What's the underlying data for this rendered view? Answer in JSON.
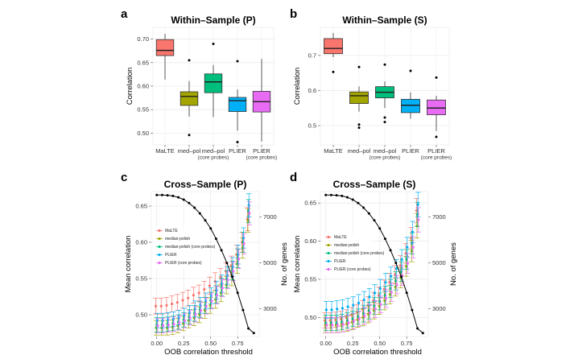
{
  "chart_data": [
    {
      "id": "a",
      "letter": "a",
      "type": "box",
      "title": "Within–Sample (P)",
      "ylabel": "Correlation",
      "ylim": [
        0.475,
        0.725
      ],
      "yticks": [
        "0.50",
        "0.55",
        "0.60",
        "0.65",
        "0.70"
      ],
      "categories": [
        "MaLTE",
        "med–pol",
        "med–pol\n(core probes)",
        "PLIER",
        "PLIER\n(core probes)"
      ],
      "colors": [
        "#F8766D",
        "#A3A500",
        "#00BF7D",
        "#00B0F6",
        "#E76BF3"
      ],
      "boxes": [
        {
          "min": 0.614,
          "q1": 0.665,
          "median": 0.676,
          "q3": 0.699,
          "max": 0.711,
          "outliers": []
        },
        {
          "min": 0.535,
          "q1": 0.559,
          "median": 0.578,
          "q3": 0.588,
          "max": 0.611,
          "outliers": [
            0.655,
            0.496
          ]
        },
        {
          "min": 0.534,
          "q1": 0.586,
          "median": 0.609,
          "q3": 0.626,
          "max": 0.645,
          "outliers": [
            0.69
          ]
        },
        {
          "min": 0.505,
          "q1": 0.546,
          "median": 0.569,
          "q3": 0.576,
          "max": 0.593,
          "outliers": [
            0.653,
            0.481
          ]
        },
        {
          "min": 0.482,
          "q1": 0.545,
          "median": 0.567,
          "q3": 0.589,
          "max": 0.658,
          "outliers": []
        }
      ]
    },
    {
      "id": "b",
      "letter": "b",
      "type": "box",
      "title": "Within–Sample (S)",
      "ylabel": "Correlation",
      "ylim": [
        0.445,
        0.78
      ],
      "yticks": [
        "0.5",
        "0.6",
        "0.7"
      ],
      "categories": [
        "MaLTE",
        "med–pol",
        "med–pol\n(core probes)",
        "PLIER",
        "PLIER\n(core probes)"
      ],
      "colors": [
        "#F8766D",
        "#A3A500",
        "#00BF7D",
        "#00B0F6",
        "#E76BF3"
      ],
      "boxes": [
        {
          "min": 0.695,
          "q1": 0.705,
          "median": 0.72,
          "q3": 0.748,
          "max": 0.764,
          "outliers": [
            0.653
          ]
        },
        {
          "min": 0.54,
          "q1": 0.563,
          "median": 0.585,
          "q3": 0.596,
          "max": 0.612,
          "outliers": [
            0.667,
            0.503,
            0.494
          ]
        },
        {
          "min": 0.55,
          "q1": 0.579,
          "median": 0.595,
          "q3": 0.611,
          "max": 0.626,
          "outliers": [
            0.674,
            0.523,
            0.51
          ]
        },
        {
          "min": 0.52,
          "q1": 0.537,
          "median": 0.558,
          "q3": 0.575,
          "max": 0.595,
          "outliers": [
            0.656
          ]
        },
        {
          "min": 0.485,
          "q1": 0.531,
          "median": 0.55,
          "q3": 0.573,
          "max": 0.585,
          "outliers": [
            0.637,
            0.468
          ]
        }
      ]
    },
    {
      "id": "c",
      "letter": "c",
      "type": "scatter-errorbar",
      "title": "Cross–Sample (P)",
      "xlabel": "OOB correlation threshold",
      "ylabel": "Mean correlation",
      "y2label": "No. of genes",
      "xlim": [
        -0.05,
        0.95
      ],
      "ylim": [
        0.47,
        0.67
      ],
      "y2lim": [
        1800,
        8100
      ],
      "xticks": [
        "0.00",
        "0.25",
        "0.50",
        "0.75"
      ],
      "yticks": [
        "0.50",
        "0.55",
        "0.60",
        "0.65"
      ],
      "y2ticks": [
        "3000",
        "5000",
        "7000"
      ],
      "x": [
        0,
        0.05,
        0.1,
        0.15,
        0.2,
        0.25,
        0.3,
        0.35,
        0.4,
        0.45,
        0.5,
        0.55,
        0.6,
        0.65,
        0.7,
        0.75,
        0.8,
        0.85
      ],
      "series": [
        {
          "name": "MaLTE",
          "color": "#F8766D",
          "values": [
            0.512,
            0.512,
            0.513,
            0.515,
            0.517,
            0.52,
            0.523,
            0.527,
            0.53,
            0.535,
            0.54,
            0.546,
            0.552,
            0.56,
            0.568,
            0.583,
            0.6,
            0.632
          ],
          "err": [
            0.011,
            0.011,
            0.011,
            0.011,
            0.011,
            0.011,
            0.011,
            0.011,
            0.011,
            0.011,
            0.012,
            0.012,
            0.012,
            0.012,
            0.013,
            0.013,
            0.014,
            0.016
          ]
        },
        {
          "name": "median-polish",
          "color": "#A3A500",
          "values": [
            0.482,
            0.482,
            0.482,
            0.483,
            0.485,
            0.488,
            0.492,
            0.496,
            0.5,
            0.506,
            0.513,
            0.521,
            0.53,
            0.541,
            0.553,
            0.57,
            0.592,
            0.63
          ],
          "err": [
            0.01,
            0.01,
            0.01,
            0.01,
            0.01,
            0.01,
            0.01,
            0.011,
            0.011,
            0.011,
            0.011,
            0.012,
            0.012,
            0.012,
            0.013,
            0.013,
            0.014,
            0.016
          ]
        },
        {
          "name": "median-polish (core probes)",
          "color": "#00BF7D",
          "values": [
            0.486,
            0.486,
            0.487,
            0.488,
            0.49,
            0.493,
            0.497,
            0.502,
            0.507,
            0.513,
            0.52,
            0.528,
            0.538,
            0.549,
            0.561,
            0.578,
            0.6,
            0.643
          ],
          "err": [
            0.01,
            0.01,
            0.01,
            0.01,
            0.01,
            0.01,
            0.01,
            0.011,
            0.011,
            0.011,
            0.011,
            0.012,
            0.012,
            0.012,
            0.013,
            0.013,
            0.014,
            0.016
          ]
        },
        {
          "name": "PLIER",
          "color": "#00B0F6",
          "values": [
            0.492,
            0.492,
            0.493,
            0.494,
            0.496,
            0.499,
            0.503,
            0.508,
            0.513,
            0.519,
            0.526,
            0.534,
            0.543,
            0.554,
            0.566,
            0.583,
            0.606,
            0.651
          ],
          "err": [
            0.01,
            0.01,
            0.01,
            0.01,
            0.01,
            0.01,
            0.01,
            0.011,
            0.011,
            0.011,
            0.011,
            0.012,
            0.012,
            0.012,
            0.013,
            0.013,
            0.014,
            0.016
          ]
        },
        {
          "name": "PLIER (core probes)",
          "color": "#E76BF3",
          "values": [
            0.485,
            0.485,
            0.486,
            0.487,
            0.489,
            0.492,
            0.496,
            0.501,
            0.506,
            0.512,
            0.519,
            0.527,
            0.537,
            0.548,
            0.56,
            0.577,
            0.598,
            0.64
          ],
          "err": [
            0.01,
            0.01,
            0.01,
            0.01,
            0.01,
            0.01,
            0.01,
            0.011,
            0.011,
            0.011,
            0.011,
            0.012,
            0.012,
            0.012,
            0.013,
            0.013,
            0.014,
            0.016
          ]
        }
      ],
      "genes": {
        "x": [
          0,
          0.05,
          0.1,
          0.15,
          0.2,
          0.25,
          0.3,
          0.35,
          0.4,
          0.45,
          0.5,
          0.55,
          0.6,
          0.65,
          0.7,
          0.75,
          0.8,
          0.85,
          0.9
        ],
        "values": [
          7950,
          7950,
          7940,
          7910,
          7850,
          7750,
          7600,
          7400,
          7150,
          6850,
          6500,
          6050,
          5550,
          5000,
          4400,
          3700,
          2950,
          2150,
          1950
        ]
      }
    },
    {
      "id": "d",
      "letter": "d",
      "type": "scatter-errorbar",
      "title": "Cross–Sample (S)",
      "xlabel": "OOB correlation threshold",
      "ylabel": "Mean correlation",
      "y2label": "No. of genes",
      "xlim": [
        -0.05,
        0.95
      ],
      "ylim": [
        0.475,
        0.665
      ],
      "y2lim": [
        1800,
        8100
      ],
      "xticks": [
        "0.00",
        "0.25",
        "0.50",
        "0.75"
      ],
      "yticks": [
        "0.50",
        "0.55",
        "0.60",
        "0.65"
      ],
      "y2ticks": [
        "3000",
        "5000",
        "7000"
      ],
      "x": [
        0,
        0.05,
        0.1,
        0.15,
        0.2,
        0.25,
        0.3,
        0.35,
        0.4,
        0.45,
        0.5,
        0.55,
        0.6,
        0.65,
        0.7,
        0.75,
        0.8,
        0.85
      ],
      "series": [
        {
          "name": "MaLTE",
          "color": "#F8766D",
          "values": [
            0.496,
            0.496,
            0.497,
            0.498,
            0.5,
            0.503,
            0.507,
            0.511,
            0.516,
            0.522,
            0.529,
            0.537,
            0.546,
            0.556,
            0.568,
            0.584,
            0.604,
            0.64
          ],
          "err": [
            0.01,
            0.01,
            0.01,
            0.01,
            0.01,
            0.01,
            0.01,
            0.011,
            0.011,
            0.011,
            0.011,
            0.012,
            0.012,
            0.012,
            0.013,
            0.013,
            0.014,
            0.016
          ]
        },
        {
          "name": "median-polish",
          "color": "#A3A500",
          "values": [
            0.49,
            0.49,
            0.49,
            0.491,
            0.492,
            0.494,
            0.497,
            0.5,
            0.504,
            0.509,
            0.515,
            0.522,
            0.53,
            0.54,
            0.552,
            0.567,
            0.587,
            0.62
          ],
          "err": [
            0.01,
            0.01,
            0.01,
            0.01,
            0.01,
            0.01,
            0.01,
            0.011,
            0.011,
            0.011,
            0.011,
            0.012,
            0.012,
            0.012,
            0.013,
            0.013,
            0.014,
            0.016
          ]
        },
        {
          "name": "median-polish (core probes)",
          "color": "#00BF7D",
          "values": [
            0.493,
            0.493,
            0.493,
            0.494,
            0.496,
            0.498,
            0.501,
            0.505,
            0.509,
            0.515,
            0.521,
            0.529,
            0.538,
            0.548,
            0.56,
            0.576,
            0.597,
            0.635
          ],
          "err": [
            0.01,
            0.01,
            0.01,
            0.01,
            0.01,
            0.01,
            0.01,
            0.011,
            0.011,
            0.011,
            0.011,
            0.012,
            0.012,
            0.012,
            0.013,
            0.013,
            0.014,
            0.016
          ]
        },
        {
          "name": "PLIER",
          "color": "#00B0F6",
          "values": [
            0.51,
            0.51,
            0.511,
            0.512,
            0.514,
            0.516,
            0.519,
            0.523,
            0.527,
            0.532,
            0.538,
            0.546,
            0.554,
            0.564,
            0.576,
            0.592,
            0.612,
            0.648
          ],
          "err": [
            0.011,
            0.011,
            0.011,
            0.011,
            0.011,
            0.011,
            0.011,
            0.011,
            0.011,
            0.011,
            0.012,
            0.012,
            0.012,
            0.012,
            0.013,
            0.013,
            0.014,
            0.016
          ]
        },
        {
          "name": "PLIER (core probes)",
          "color": "#E76BF3",
          "values": [
            0.49,
            0.49,
            0.49,
            0.491,
            0.493,
            0.495,
            0.498,
            0.502,
            0.506,
            0.511,
            0.517,
            0.525,
            0.533,
            0.543,
            0.555,
            0.571,
            0.592,
            0.628
          ],
          "err": [
            0.01,
            0.01,
            0.01,
            0.01,
            0.01,
            0.01,
            0.01,
            0.011,
            0.011,
            0.011,
            0.011,
            0.012,
            0.012,
            0.012,
            0.013,
            0.013,
            0.014,
            0.016
          ]
        }
      ],
      "genes": {
        "x": [
          0,
          0.05,
          0.1,
          0.15,
          0.2,
          0.25,
          0.3,
          0.35,
          0.4,
          0.45,
          0.5,
          0.55,
          0.6,
          0.65,
          0.7,
          0.75,
          0.8,
          0.85,
          0.9
        ],
        "values": [
          7950,
          7950,
          7940,
          7910,
          7850,
          7750,
          7600,
          7400,
          7150,
          6850,
          6500,
          6050,
          5550,
          5000,
          4400,
          3700,
          2950,
          2150,
          1950
        ]
      }
    }
  ]
}
